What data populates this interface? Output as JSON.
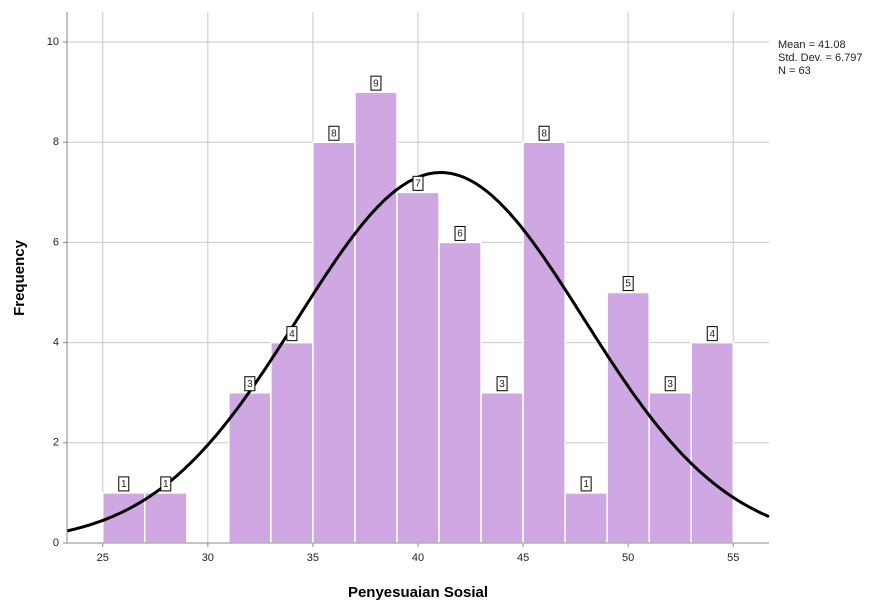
{
  "chart_data": {
    "type": "histogram",
    "x_label": "Penyesuaian Sosial",
    "y_label": "Frequency",
    "bins": [
      25,
      27,
      29,
      31,
      33,
      35,
      37,
      39,
      41,
      43,
      45,
      47,
      49,
      51,
      53,
      55
    ],
    "values": [
      1,
      1,
      0,
      3,
      4,
      8,
      9,
      7,
      6,
      3,
      8,
      1,
      5,
      3,
      4
    ],
    "color": "#cfa8e3",
    "curve_color": "#000000",
    "stats": {
      "mean": {
        "value": 41.08,
        "label": "Mean = 41.08"
      },
      "sd": {
        "value": 6.797,
        "label": "Std. Dev. = 6.797"
      },
      "n": {
        "value": 63,
        "label": "N = 63"
      }
    },
    "xlim": [
      23.3,
      56.7
    ],
    "ylim": [
      0,
      10.6
    ],
    "xticks": [
      25,
      30,
      35,
      40,
      45,
      50,
      55
    ],
    "yticks": [
      0,
      2,
      4,
      6,
      8,
      10
    ],
    "grid": true
  }
}
